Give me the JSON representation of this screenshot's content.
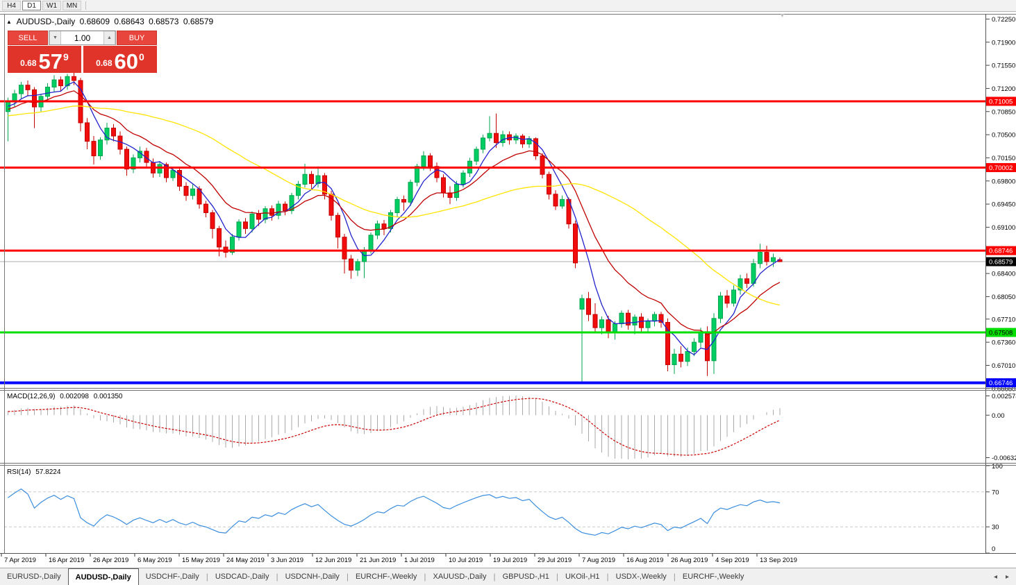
{
  "toolbar": {
    "timeframes": [
      "H4",
      "D1",
      "W1",
      "MN"
    ],
    "active": "D1"
  },
  "title": {
    "symbol": "AUDUSD-,Daily",
    "open": "0.68609",
    "high": "0.68643",
    "low": "0.68573",
    "close": "0.68579"
  },
  "trade_panel": {
    "sell_label": "SELL",
    "buy_label": "BUY",
    "volume": "1.00",
    "sell_price": {
      "prefix": "0.68",
      "big": "57",
      "sup": "9"
    },
    "buy_price": {
      "prefix": "0.68",
      "big": "60",
      "sup": "0"
    }
  },
  "price_scale": {
    "ticks": [
      "0.72250",
      "0.71900",
      "0.71550",
      "0.71200",
      "0.70850",
      "0.70500",
      "0.70150",
      "0.69800",
      "0.69450",
      "0.69100",
      "0.68400",
      "0.68050",
      "0.67710",
      "0.67360",
      "0.67010",
      "0.66660"
    ]
  },
  "levels": [
    {
      "label": "0.71005",
      "value": 0.71005,
      "color": "#FF0000",
      "thickness": 3,
      "text_color": "#FFFFFF"
    },
    {
      "label": "0.70002",
      "value": 0.70002,
      "color": "#FF0000",
      "thickness": 3,
      "text_color": "#FFFFFF"
    },
    {
      "label": "0.68746",
      "value": 0.68746,
      "color": "#FF0000",
      "thickness": 3,
      "text_color": "#FFFFFF"
    },
    {
      "label": "0.67508",
      "value": 0.67508,
      "color": "#00DD00",
      "thickness": 3,
      "text_color": "#000000"
    },
    {
      "label": "0.66746",
      "value": 0.66746,
      "color": "#0000FF",
      "thickness": 4,
      "text_color": "#FFFFFF"
    }
  ],
  "current_price": {
    "label": "0.68579",
    "value": 0.68579,
    "bg": "#000000",
    "text_color": "#FFFFFF"
  },
  "indicators": {
    "macd": {
      "name": "MACD(12,26,9)",
      "main_value": "0.002098",
      "signal_value": "0.001350",
      "scale_top": "0.002574",
      "scale_zero": "0.00",
      "scale_bottom": "-0.006326",
      "fast": 12,
      "slow": 26,
      "signal": 9,
      "hist_color": "#A9A9A9",
      "signal_color": "#CC0000"
    },
    "rsi": {
      "name": "RSI(14)",
      "value": "57.8224",
      "period": 14,
      "scale_labels": [
        "100",
        "70",
        "30",
        "0"
      ],
      "upper_level": 70,
      "lower_level": 30,
      "line_color": "#3B8EDE",
      "level_color": "#C8C8C8"
    },
    "moving_averages": [
      {
        "period": 5,
        "type": "sma",
        "color": "#2222CD"
      },
      {
        "period": 13,
        "type": "ema",
        "color": "#C00000"
      },
      {
        "period": 34,
        "type": "sma",
        "color": "#FFE400"
      }
    ]
  },
  "date_axis": [
    "7 Apr 2019",
    "16 Apr 2019",
    "26 Apr 2019",
    "6 May 2019",
    "15 May 2019",
    "24 May 2019",
    "3 Jun 2019",
    "12 Jun 2019",
    "21 Jun 2019",
    "1 Jul 2019",
    "10 Jul 2019",
    "19 Jul 2019",
    "29 Jul 2019",
    "7 Aug 2019",
    "16 Aug 2019",
    "26 Aug 2019",
    "4 Sep 2019",
    "13 Sep 2019"
  ],
  "tabs": {
    "items": [
      "EURUSD-,Daily",
      "AUDUSD-,Daily",
      "USDCHF-,Daily",
      "USDCAD-,Daily",
      "USDCNH-,Daily",
      "EURCHF-,Weekly",
      "XAUUSD-,Daily",
      "GBPUSD-,H1",
      "UKOil-,H1",
      "USDX-,Weekly",
      "EURCHF-,Weekly"
    ],
    "active_index": 1,
    "scroll_left": "◂",
    "scroll_right": "▸"
  },
  "colors": {
    "bull_fill": "#00CE62",
    "bull_edge": "#00A44C",
    "bear_fill": "#F10D0D",
    "bear_edge": "#C40000",
    "current_line": "#ADADAD"
  },
  "chart_data": {
    "type": "candlestick",
    "symbol": "AUDUSD",
    "timeframe": "Daily",
    "candles": [
      [
        0.7085,
        0.7106,
        0.704,
        0.71
      ],
      [
        0.71,
        0.7118,
        0.7092,
        0.7112
      ],
      [
        0.7112,
        0.713,
        0.7105,
        0.7125
      ],
      [
        0.7125,
        0.7132,
        0.7108,
        0.7118
      ],
      [
        0.7118,
        0.7122,
        0.706,
        0.7092
      ],
      [
        0.7092,
        0.7112,
        0.7085,
        0.7108
      ],
      [
        0.7108,
        0.7128,
        0.71,
        0.7122
      ],
      [
        0.7122,
        0.714,
        0.7115,
        0.7133
      ],
      [
        0.7133,
        0.7138,
        0.7115,
        0.7124
      ],
      [
        0.7124,
        0.7142,
        0.7118,
        0.7138
      ],
      [
        0.7138,
        0.7152,
        0.7125,
        0.7132
      ],
      [
        0.7132,
        0.7136,
        0.7055,
        0.7068
      ],
      [
        0.7068,
        0.7075,
        0.7028,
        0.704
      ],
      [
        0.704,
        0.7048,
        0.7005,
        0.7018
      ],
      [
        0.7018,
        0.7046,
        0.7012,
        0.7042
      ],
      [
        0.7042,
        0.7068,
        0.7035,
        0.706
      ],
      [
        0.706,
        0.7066,
        0.704,
        0.7048
      ],
      [
        0.7048,
        0.7055,
        0.702,
        0.7028
      ],
      [
        0.7028,
        0.7032,
        0.6988,
        0.6998
      ],
      [
        0.6998,
        0.702,
        0.6992,
        0.7015
      ],
      [
        0.7015,
        0.7032,
        0.7008,
        0.7025
      ],
      [
        0.7025,
        0.703,
        0.7,
        0.7008
      ],
      [
        0.7008,
        0.7014,
        0.6985,
        0.6992
      ],
      [
        0.6992,
        0.701,
        0.6986,
        0.7005
      ],
      [
        0.7005,
        0.7008,
        0.6978,
        0.6985
      ],
      [
        0.6985,
        0.7,
        0.698,
        0.6996
      ],
      [
        0.6996,
        0.6999,
        0.6965,
        0.6972
      ],
      [
        0.6972,
        0.6978,
        0.695,
        0.6958
      ],
      [
        0.6958,
        0.6975,
        0.6952,
        0.6968
      ],
      [
        0.6968,
        0.6972,
        0.6938,
        0.6945
      ],
      [
        0.6945,
        0.695,
        0.6925,
        0.6932
      ],
      [
        0.6932,
        0.6936,
        0.6893,
        0.6908
      ],
      [
        0.6908,
        0.6912,
        0.6866,
        0.688
      ],
      [
        0.688,
        0.689,
        0.6864,
        0.6872
      ],
      [
        0.6872,
        0.69,
        0.6868,
        0.6895
      ],
      [
        0.6895,
        0.6922,
        0.689,
        0.6918
      ],
      [
        0.6918,
        0.6924,
        0.69,
        0.6908
      ],
      [
        0.6908,
        0.6934,
        0.6902,
        0.693
      ],
      [
        0.693,
        0.6936,
        0.6912,
        0.6922
      ],
      [
        0.6922,
        0.6942,
        0.6916,
        0.6938
      ],
      [
        0.6938,
        0.6943,
        0.692,
        0.6928
      ],
      [
        0.6928,
        0.695,
        0.6922,
        0.6945
      ],
      [
        0.6945,
        0.6949,
        0.6928,
        0.6935
      ],
      [
        0.6935,
        0.6962,
        0.693,
        0.6958
      ],
      [
        0.6958,
        0.698,
        0.6952,
        0.6975
      ],
      [
        0.6975,
        0.7006,
        0.697,
        0.699
      ],
      [
        0.699,
        0.6995,
        0.6968,
        0.6976
      ],
      [
        0.6976,
        0.7002,
        0.697,
        0.6988
      ],
      [
        0.6988,
        0.6992,
        0.6952,
        0.696
      ],
      [
        0.696,
        0.6965,
        0.692,
        0.6928
      ],
      [
        0.6928,
        0.6932,
        0.6878,
        0.6895
      ],
      [
        0.6895,
        0.69,
        0.684,
        0.6862
      ],
      [
        0.6862,
        0.6868,
        0.6832,
        0.6845
      ],
      [
        0.6845,
        0.6862,
        0.6836,
        0.6858
      ],
      [
        0.6858,
        0.688,
        0.6833,
        0.6875
      ],
      [
        0.6875,
        0.6902,
        0.687,
        0.6898
      ],
      [
        0.6898,
        0.692,
        0.6892,
        0.6915
      ],
      [
        0.6915,
        0.6921,
        0.6898,
        0.6908
      ],
      [
        0.6908,
        0.6936,
        0.6902,
        0.6932
      ],
      [
        0.6932,
        0.6956,
        0.6926,
        0.6952
      ],
      [
        0.6952,
        0.6958,
        0.6935,
        0.6948
      ],
      [
        0.6948,
        0.6982,
        0.6942,
        0.6978
      ],
      [
        0.6978,
        0.7006,
        0.6972,
        0.7002
      ],
      [
        0.7002,
        0.7025,
        0.6996,
        0.7018
      ],
      [
        0.7018,
        0.7022,
        0.6995,
        0.7002
      ],
      [
        0.7002,
        0.7008,
        0.6978,
        0.6985
      ],
      [
        0.6985,
        0.699,
        0.6955,
        0.6962
      ],
      [
        0.6962,
        0.6972,
        0.6945,
        0.6955
      ],
      [
        0.6955,
        0.698,
        0.695,
        0.6975
      ],
      [
        0.6975,
        0.6996,
        0.697,
        0.6992
      ],
      [
        0.6992,
        0.7015,
        0.6986,
        0.701
      ],
      [
        0.701,
        0.7032,
        0.7004,
        0.7028
      ],
      [
        0.7028,
        0.705,
        0.7022,
        0.7045
      ],
      [
        0.7045,
        0.7078,
        0.704,
        0.7052
      ],
      [
        0.7052,
        0.7082,
        0.703,
        0.7038
      ],
      [
        0.7038,
        0.7056,
        0.7032,
        0.705
      ],
      [
        0.705,
        0.7055,
        0.7035,
        0.7042
      ],
      [
        0.7042,
        0.7052,
        0.7036,
        0.7048
      ],
      [
        0.7048,
        0.7051,
        0.703,
        0.7036
      ],
      [
        0.7036,
        0.7048,
        0.703,
        0.7044
      ],
      [
        0.7044,
        0.7046,
        0.7012,
        0.7018
      ],
      [
        0.7018,
        0.7022,
        0.6984,
        0.699
      ],
      [
        0.699,
        0.6994,
        0.6952,
        0.696
      ],
      [
        0.696,
        0.6966,
        0.6936,
        0.6942
      ],
      [
        0.6942,
        0.6958,
        0.6938,
        0.6952
      ],
      [
        0.6952,
        0.6955,
        0.6908,
        0.6915
      ],
      [
        0.6915,
        0.692,
        0.6848,
        0.6856
      ],
      [
        0.6786,
        0.6808,
        0.6676,
        0.6802
      ],
      [
        0.6802,
        0.6812,
        0.6768,
        0.6778
      ],
      [
        0.6778,
        0.6795,
        0.6752,
        0.6758
      ],
      [
        0.6758,
        0.6775,
        0.6748,
        0.677
      ],
      [
        0.677,
        0.6776,
        0.6742,
        0.675
      ],
      [
        0.675,
        0.6768,
        0.674,
        0.6764
      ],
      [
        0.6764,
        0.6784,
        0.6758,
        0.678
      ],
      [
        0.678,
        0.6785,
        0.6755,
        0.6762
      ],
      [
        0.6762,
        0.6778,
        0.6748,
        0.6774
      ],
      [
        0.6774,
        0.678,
        0.6752,
        0.6758
      ],
      [
        0.6758,
        0.6772,
        0.675,
        0.6768
      ],
      [
        0.6768,
        0.6782,
        0.676,
        0.6778
      ],
      [
        0.6778,
        0.6782,
        0.6758,
        0.6766
      ],
      [
        0.6766,
        0.6772,
        0.6692,
        0.6702
      ],
      [
        0.6702,
        0.6726,
        0.6688,
        0.6718
      ],
      [
        0.6718,
        0.673,
        0.6698,
        0.6707
      ],
      [
        0.6707,
        0.6728,
        0.67,
        0.6722
      ],
      [
        0.6722,
        0.6742,
        0.6715,
        0.6736
      ],
      [
        0.6736,
        0.6758,
        0.6728,
        0.6752
      ],
      [
        0.6752,
        0.676,
        0.6685,
        0.6708
      ],
      [
        0.6708,
        0.678,
        0.6688,
        0.6772
      ],
      [
        0.6772,
        0.6812,
        0.6765,
        0.6806
      ],
      [
        0.6806,
        0.6815,
        0.6788,
        0.6795
      ],
      [
        0.6795,
        0.6822,
        0.679,
        0.6815
      ],
      [
        0.6815,
        0.6838,
        0.6808,
        0.6832
      ],
      [
        0.6832,
        0.684,
        0.6818,
        0.6825
      ],
      [
        0.6825,
        0.6862,
        0.682,
        0.6855
      ],
      [
        0.6855,
        0.6885,
        0.6848,
        0.6872
      ],
      [
        0.6872,
        0.6882,
        0.6852,
        0.6858
      ],
      [
        0.6858,
        0.687,
        0.685,
        0.6864
      ],
      [
        0.68609,
        0.68643,
        0.68573,
        0.68579
      ]
    ]
  }
}
